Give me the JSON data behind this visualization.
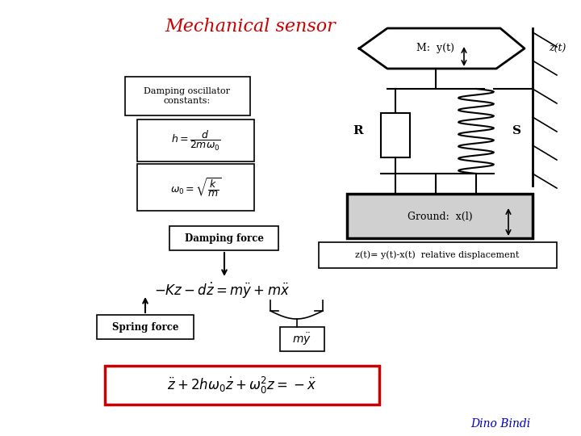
{
  "title": "Mechanical sensor",
  "title_color": "#cc0000",
  "title_fontsize": 16,
  "bg_color": "#ffffff",
  "dino_text": "Dino Bindi",
  "dino_color": "#0000cc",
  "label_damping_osc": "Damping oscillator\nconstants:",
  "label_zt": "z(t)= y(t)-x(t)  relative displacement",
  "label_damping_force": "Damping force",
  "label_spring_force": "Spring force",
  "label_M": "M:  y(t)",
  "label_ground": "Ground:  x(l)",
  "label_R": "R",
  "label_S": "S",
  "label_zt_side": "z(t)"
}
